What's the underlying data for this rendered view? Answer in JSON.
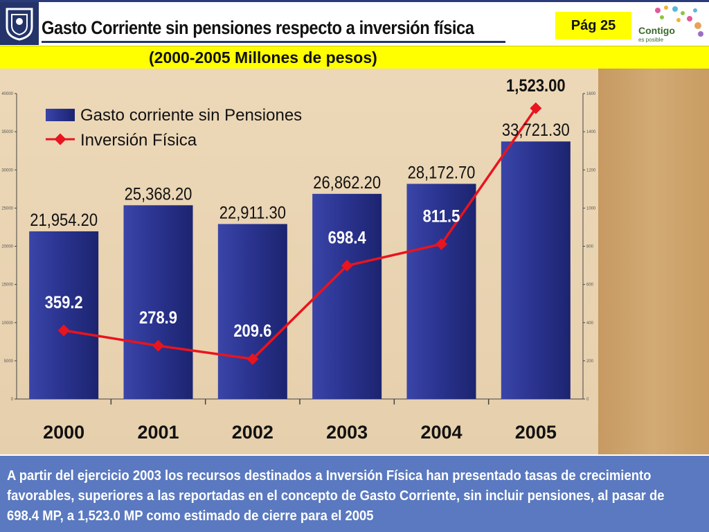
{
  "header": {
    "title": "Gasto Corriente sin pensiones respecto a inversión física",
    "page_label": "Pág 25",
    "subtitle": "(2000-2005  Millones de pesos)",
    "logo_right_text_1": "Contigo",
    "logo_right_text_2": "es posible"
  },
  "chart_data": {
    "type": "bar",
    "categories": [
      "2000",
      "2001",
      "2002",
      "2003",
      "2004",
      "2005"
    ],
    "series": [
      {
        "name": "Gasto corriente sin Pensiones",
        "type": "bar",
        "axis": "left",
        "color": "#2b3490",
        "values": [
          21954.2,
          25368.2,
          22911.3,
          26862.2,
          28172.7,
          33721.3
        ],
        "labels": [
          "21,954.20",
          "25,368.20",
          "22,911.30",
          "26,862.20",
          "28,172.70",
          "33,721.30"
        ]
      },
      {
        "name": "Inversión Física",
        "type": "line",
        "axis": "right",
        "color": "#e8141e",
        "values": [
          359.2,
          278.9,
          209.6,
          698.4,
          811.5,
          1523.0
        ],
        "labels": [
          "359.2",
          "278.9",
          "209.6",
          "698.4",
          "811.5",
          "1,523.00"
        ]
      }
    ],
    "ylim_left": [
      0,
      40000
    ],
    "ylim_right": [
      0,
      1600
    ],
    "yticks_left": [
      "0",
      "5000",
      "10000",
      "15000",
      "20000",
      "25000",
      "30000",
      "35000",
      "40000"
    ],
    "yticks_right": [
      "0",
      "200",
      "400",
      "600",
      "800",
      "1000",
      "1200",
      "1400",
      "1600"
    ],
    "legend_position": "top-left",
    "grid": false
  },
  "note": {
    "text": "A partir del ejercicio 2003 los recursos destinados a Inversión Física han presentado tasas de crecimiento favorables, superiores a las reportadas en el concepto de Gasto Corriente, sin incluir pensiones, al pasar de 698.4 MP, a 1,523.0 MP como estimado de cierre para el 2005"
  },
  "colors": {
    "header_blue": "#24346a",
    "highlight_yellow": "#ffff00",
    "note_background": "#5a79c0"
  }
}
